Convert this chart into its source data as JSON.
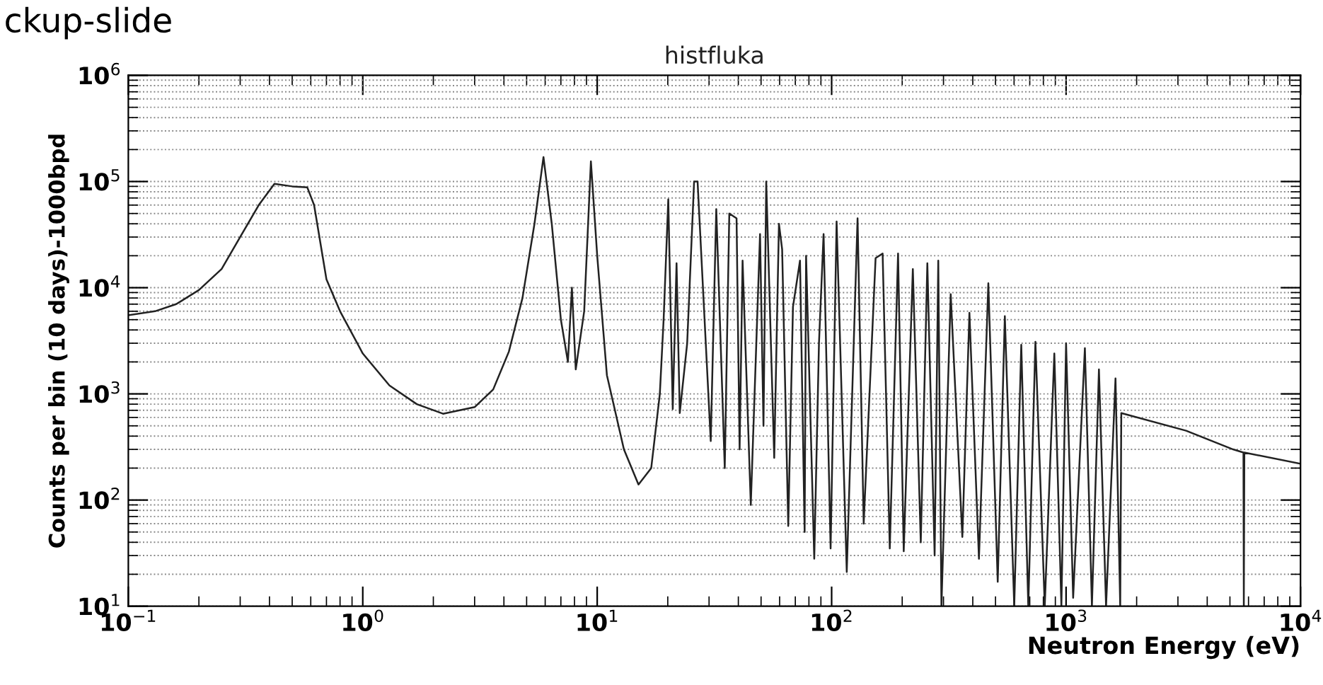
{
  "chart_data": {
    "type": "line",
    "title": "histfluka",
    "xlabel": "Neutron Energy (eV)",
    "ylabel": "Counts per bin (10 days)-1000bpd",
    "annotations": [
      "ckup-slide"
    ],
    "log": "xy",
    "grid": "y",
    "marker": "none",
    "line_style": "solid",
    "xlim": [
      0.1,
      10000
    ],
    "ylim": [
      10,
      1000000
    ],
    "xticks": [
      {
        "value": 0.1,
        "label": "10$^{−1}$"
      },
      {
        "value": 1,
        "label": "10$^{0}$"
      },
      {
        "value": 10,
        "label": "10$^{1}$"
      },
      {
        "value": 100,
        "label": "10$^{2}$"
      },
      {
        "value": 1000,
        "label": "10$^{3}$"
      },
      {
        "value": 10000,
        "label": "10$^{4}$"
      }
    ],
    "yticks": [
      {
        "value": 10,
        "label": "10$^{1}$"
      },
      {
        "value": 100,
        "label": "10$^{2}$"
      },
      {
        "value": 1000,
        "label": "10$^{3}$"
      },
      {
        "value": 10000,
        "label": "10$^{4}$"
      },
      {
        "value": 100000,
        "label": "10$^{5}$"
      },
      {
        "value": 1000000,
        "label": "10$^{6}$"
      }
    ],
    "series": [
      {
        "color": "#222222",
        "x": [
          0.1,
          0.13,
          0.16,
          0.2,
          0.25,
          0.3,
          0.36,
          0.42,
          0.5,
          0.58,
          0.62,
          0.7,
          0.8,
          1.0,
          1.3,
          1.7,
          2.2,
          3.0,
          3.6,
          4.2,
          4.8,
          5.4,
          5.9,
          6.4,
          7.0,
          7.5,
          7.8,
          8.1,
          8.8,
          9.4,
          10,
          11,
          13,
          15,
          17,
          18.5,
          19.2,
          20.1,
          21.0,
          21.8,
          22.5,
          24.2,
          25.9,
          26.8,
          30.5,
          32.2,
          35.0,
          36.6,
          39.3,
          40.5,
          41.7,
          45.2,
          49.5,
          51.2,
          52.6,
          56.9,
          59.6,
          61.5,
          65.3,
          68.4,
          73.3,
          76.7,
          77.8,
          84.3,
          88.3,
          92.4,
          99,
          105,
          116,
          129,
          137,
          154,
          165,
          177,
          192,
          203,
          222,
          240,
          256,
          275,
          285,
          294,
          322,
          361,
          387,
          425,
          466,
          511,
          548,
          601,
          644,
          690,
          740,
          811,
          891,
          955,
          1000,
          1072,
          1203,
          1289,
          1381,
          1481,
          1625,
          1702,
          1720,
          3250,
          5160,
          5710,
          5730,
          5760,
          10000
        ],
        "values": [
          5500,
          6000,
          7000,
          9500,
          15000,
          30000,
          60000,
          95000,
          90000,
          88000,
          60000,
          12000,
          6000,
          2400,
          1200,
          800,
          650,
          750,
          1100,
          2500,
          8000,
          40000,
          170000,
          40000,
          5000,
          2000,
          10000,
          1700,
          6000,
          155000,
          20000,
          1500,
          300,
          140,
          200,
          1000,
          5000,
          68000,
          720,
          17000,
          660,
          3000,
          100000,
          100000,
          360,
          55000,
          200,
          50000,
          45000,
          300,
          18000,
          90,
          32000,
          500,
          100000,
          250,
          40000,
          23000,
          57,
          6600,
          18000,
          50,
          20000,
          28,
          3000,
          32000,
          35,
          42000,
          21,
          45000,
          60,
          19000,
          21000,
          35,
          21000,
          33,
          15000,
          40,
          17000,
          30,
          18000,
          10,
          8700,
          45,
          5800,
          28,
          11000,
          17,
          5400,
          10,
          2900,
          10,
          3100,
          10,
          2400,
          10,
          3000,
          12,
          2700,
          10,
          1700,
          10,
          1400,
          10,
          660,
          450,
          300,
          280,
          10,
          280,
          220
        ]
      }
    ]
  }
}
